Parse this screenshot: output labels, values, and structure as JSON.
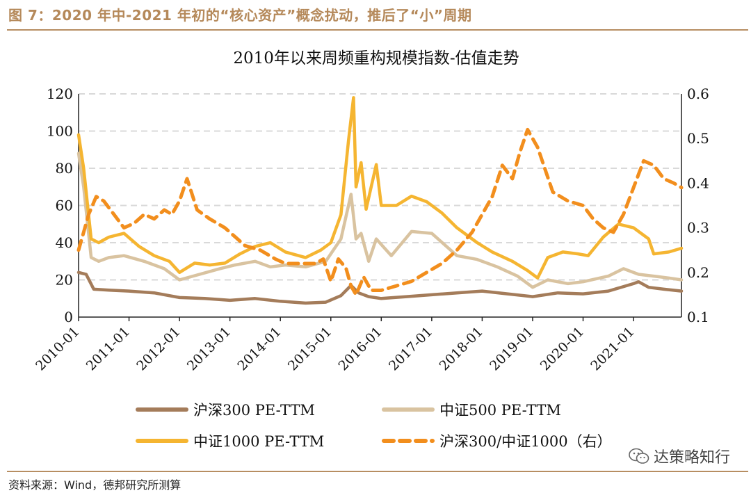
{
  "header": {
    "figure_title": "图 7：2020 年中-2021 年初的“核心资产”概念扰动，推后了“小”周期"
  },
  "footer": {
    "source": "资料来源：Wind，德邦研究所测算",
    "watermark": "达策略知行",
    "watermark_icon": "wechat-icon"
  },
  "colors": {
    "header": "#b5895a",
    "rule": "#b78e62",
    "hs300": "#a47c5a",
    "zz500": "#d9c3a0",
    "zz1000": "#f5b531",
    "ratio": "#f28e1d",
    "grid": "#d9d9d9"
  },
  "chart_data": {
    "type": "line",
    "title": "2010年以来周频重构规模指数-估值走势",
    "xlabel": "",
    "ylabel_left": "",
    "ylabel_right": "",
    "x_ticks": [
      "2010-01",
      "2011-01",
      "2012-01",
      "2013-01",
      "2014-01",
      "2015-01",
      "2016-01",
      "2017-01",
      "2018-01",
      "2019-01",
      "2020-01",
      "2021-01"
    ],
    "x_range": [
      2010.0,
      2021.95
    ],
    "ylim_left": [
      0,
      120
    ],
    "yticks_left": [
      "0",
      "20",
      "40",
      "60",
      "80",
      "100",
      "120"
    ],
    "ylim_right": [
      0.1,
      0.6
    ],
    "yticks_right": [
      "0.1",
      "0.2",
      "0.3",
      "0.4",
      "0.5",
      "0.6"
    ],
    "grid": "horizontal dashed",
    "legend_position": "bottom",
    "series": [
      {
        "name": "沪深300 PE-TTM",
        "axis": "left",
        "style": "solid",
        "x": [
          2010.0,
          2010.15,
          2010.3,
          2010.6,
          2011.0,
          2011.5,
          2012.0,
          2012.5,
          2013.0,
          2013.5,
          2014.0,
          2014.5,
          2014.9,
          2015.2,
          2015.4,
          2015.55,
          2015.75,
          2016.0,
          2016.5,
          2017.0,
          2017.5,
          2018.0,
          2018.5,
          2019.0,
          2019.5,
          2020.0,
          2020.5,
          2021.0,
          2021.1,
          2021.3,
          2021.6,
          2021.95
        ],
        "values": [
          24,
          23,
          15,
          14.5,
          14,
          13,
          10.5,
          10,
          9,
          10,
          8.5,
          7.5,
          8,
          11.5,
          17,
          13,
          11,
          10,
          11,
          12,
          13,
          14,
          12.5,
          11,
          13,
          12.5,
          14,
          18,
          19,
          16,
          15,
          14
        ]
      },
      {
        "name": "中证500 PE-TTM",
        "axis": "left",
        "style": "solid",
        "x": [
          2010.0,
          2010.1,
          2010.25,
          2010.4,
          2010.6,
          2010.9,
          2011.3,
          2011.7,
          2012.0,
          2012.4,
          2012.8,
          2013.1,
          2013.5,
          2013.8,
          2014.1,
          2014.5,
          2014.9,
          2015.2,
          2015.4,
          2015.5,
          2015.6,
          2015.75,
          2015.9,
          2016.2,
          2016.6,
          2017.0,
          2017.5,
          2017.9,
          2018.3,
          2018.7,
          2019.0,
          2019.3,
          2019.7,
          2020.0,
          2020.5,
          2020.8,
          2021.1,
          2021.4,
          2021.7,
          2021.95
        ],
        "values": [
          88,
          70,
          32,
          30,
          32,
          33,
          30,
          26,
          20,
          23,
          26,
          28,
          30,
          27,
          28,
          27,
          30,
          42,
          66,
          42,
          45,
          30,
          42,
          33,
          46,
          45,
          33,
          31,
          27,
          22,
          16,
          20,
          18,
          19,
          22,
          26,
          23,
          22,
          21,
          20
        ]
      },
      {
        "name": "中证1000 PE-TTM",
        "axis": "left",
        "style": "solid",
        "x": [
          2010.0,
          2010.1,
          2010.25,
          2010.4,
          2010.6,
          2010.9,
          2011.2,
          2011.5,
          2011.8,
          2012.0,
          2012.3,
          2012.6,
          2012.9,
          2013.2,
          2013.5,
          2013.8,
          2014.1,
          2014.5,
          2014.8,
          2015.0,
          2015.2,
          2015.35,
          2015.45,
          2015.5,
          2015.6,
          2015.7,
          2015.8,
          2015.9,
          2016.0,
          2016.3,
          2016.6,
          2016.9,
          2017.2,
          2017.5,
          2017.9,
          2018.2,
          2018.6,
          2018.9,
          2019.1,
          2019.3,
          2019.6,
          2019.9,
          2020.1,
          2020.4,
          2020.7,
          2021.0,
          2021.3,
          2021.4,
          2021.7,
          2021.95
        ],
        "values": [
          98,
          80,
          42,
          40,
          43,
          45,
          38,
          33,
          30,
          24,
          29,
          28,
          29,
          34,
          38,
          40,
          35,
          32,
          36,
          40,
          55,
          95,
          118,
          70,
          83,
          58,
          70,
          82,
          60,
          60,
          65,
          62,
          56,
          48,
          40,
          35,
          30,
          25,
          21,
          32,
          35,
          34,
          33,
          43,
          50,
          48,
          42,
          34,
          35,
          37
        ]
      },
      {
        "name": "沪深300/中证1000（右）",
        "axis": "right",
        "style": "dashed",
        "x": [
          2010.0,
          2010.1,
          2010.2,
          2010.35,
          2010.5,
          2010.7,
          2010.9,
          2011.1,
          2011.3,
          2011.5,
          2011.7,
          2011.85,
          2012.0,
          2012.15,
          2012.35,
          2012.6,
          2012.9,
          2013.1,
          2013.3,
          2013.6,
          2013.9,
          2014.1,
          2014.4,
          2014.7,
          2014.85,
          2015.0,
          2015.15,
          2015.3,
          2015.4,
          2015.5,
          2015.65,
          2015.8,
          2016.0,
          2016.3,
          2016.6,
          2016.9,
          2017.2,
          2017.5,
          2017.8,
          2018.0,
          2018.2,
          2018.4,
          2018.6,
          2018.75,
          2018.9,
          2019.1,
          2019.4,
          2019.7,
          2020.0,
          2020.2,
          2020.4,
          2020.6,
          2020.8,
          2021.0,
          2021.2,
          2021.4,
          2021.6,
          2021.8,
          2021.95
        ],
        "values": [
          0.25,
          0.29,
          0.33,
          0.37,
          0.36,
          0.33,
          0.3,
          0.31,
          0.33,
          0.32,
          0.34,
          0.33,
          0.36,
          0.41,
          0.34,
          0.32,
          0.3,
          0.28,
          0.26,
          0.25,
          0.23,
          0.22,
          0.22,
          0.22,
          0.23,
          0.18,
          0.23,
          0.21,
          0.17,
          0.15,
          0.19,
          0.16,
          0.16,
          0.17,
          0.18,
          0.2,
          0.22,
          0.25,
          0.29,
          0.33,
          0.37,
          0.44,
          0.41,
          0.47,
          0.52,
          0.48,
          0.38,
          0.36,
          0.35,
          0.32,
          0.3,
          0.29,
          0.33,
          0.39,
          0.45,
          0.44,
          0.41,
          0.4,
          0.39
        ]
      }
    ]
  }
}
